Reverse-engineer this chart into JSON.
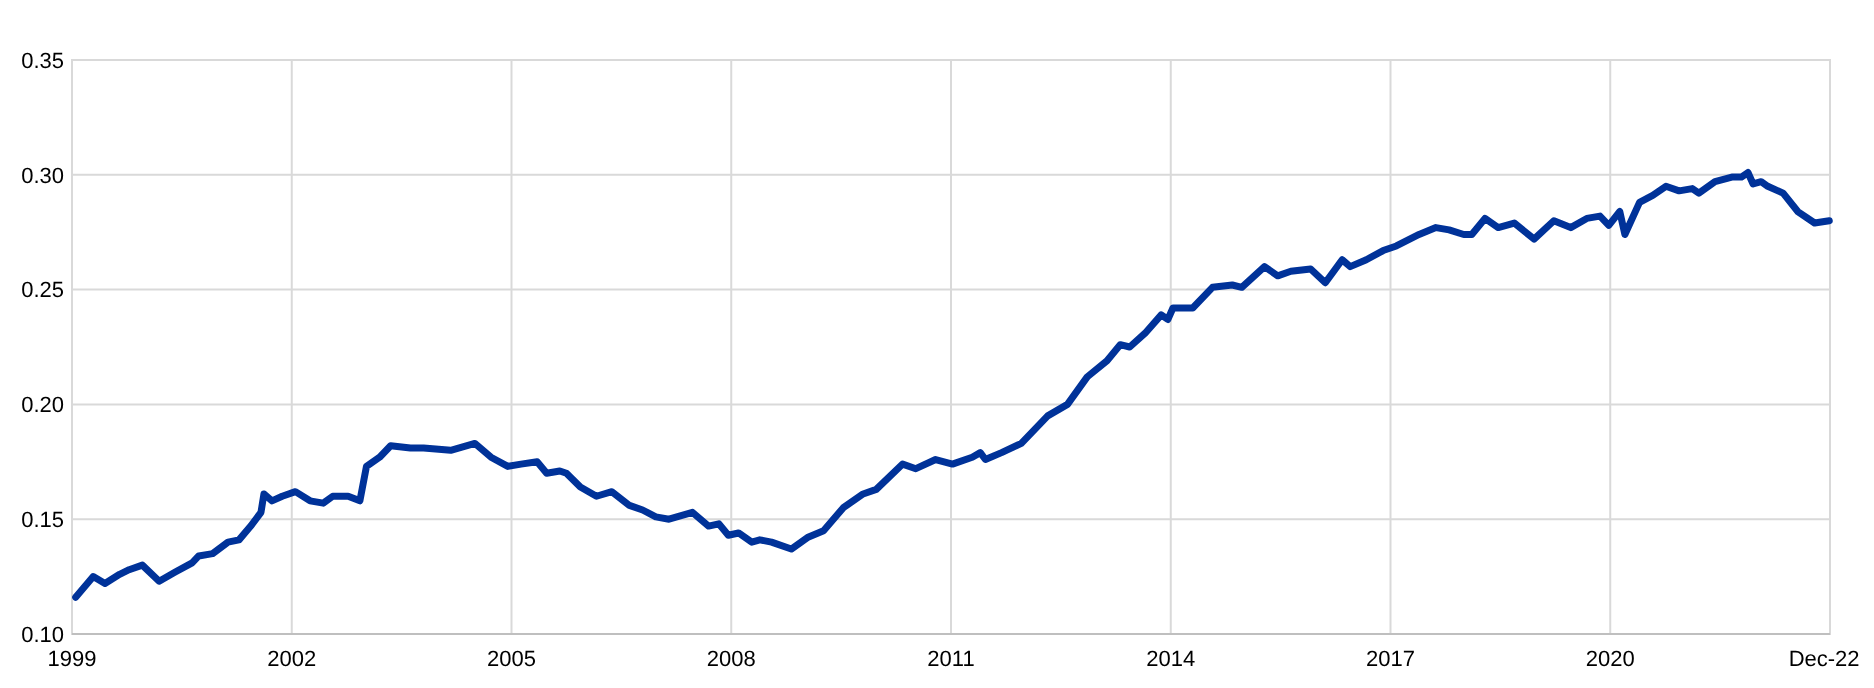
{
  "chart_data": {
    "type": "line",
    "x": [
      1999.05,
      1999.29,
      1999.45,
      1999.65,
      1999.78,
      1999.96,
      2000.19,
      2000.41,
      2000.64,
      2000.73,
      2000.92,
      2001.13,
      2001.28,
      2001.44,
      2001.58,
      2001.62,
      2001.73,
      2001.87,
      2002.05,
      2002.25,
      2002.43,
      2002.56,
      2002.77,
      2002.93,
      2003.02,
      2003.2,
      2003.35,
      2003.62,
      2003.8,
      2004.17,
      2004.5,
      2004.72,
      2004.95,
      2005.13,
      2005.35,
      2005.48,
      2005.66,
      2005.75,
      2005.94,
      2006.16,
      2006.37,
      2006.61,
      2006.79,
      2006.97,
      2007.15,
      2007.47,
      2007.69,
      2007.83,
      2007.96,
      2008.1,
      2008.28,
      2008.39,
      2008.55,
      2008.82,
      2009.04,
      2009.26,
      2009.53,
      2009.8,
      2009.98,
      2010.34,
      2010.52,
      2010.79,
      2011.02,
      2011.29,
      2011.4,
      2011.47,
      2011.69,
      2011.96,
      2012.32,
      2012.59,
      2012.86,
      2013.13,
      2013.31,
      2013.44,
      2013.65,
      2013.87,
      2013.96,
      2014.03,
      2014.3,
      2014.57,
      2014.84,
      2014.97,
      2015.28,
      2015.46,
      2015.64,
      2015.91,
      2016.11,
      2016.34,
      2016.45,
      2016.67,
      2016.9,
      2017.08,
      2017.39,
      2017.62,
      2017.8,
      2018.0,
      2018.11,
      2018.29,
      2018.47,
      2018.69,
      2018.96,
      2019.23,
      2019.46,
      2019.68,
      2019.86,
      2019.98,
      2020.13,
      2020.2,
      2020.4,
      2020.58,
      2020.76,
      2020.94,
      2021.12,
      2021.21,
      2021.43,
      2021.66,
      2021.79,
      2021.88,
      2021.95,
      2022.06,
      2022.15,
      2022.36,
      2022.56,
      2022.79,
      2022.99
    ],
    "values": [
      0.116,
      0.125,
      0.122,
      0.126,
      0.128,
      0.13,
      0.123,
      0.127,
      0.131,
      0.134,
      0.135,
      0.14,
      0.141,
      0.147,
      0.153,
      0.161,
      0.158,
      0.16,
      0.162,
      0.158,
      0.157,
      0.16,
      0.16,
      0.158,
      0.173,
      0.177,
      0.182,
      0.181,
      0.181,
      0.18,
      0.183,
      0.177,
      0.173,
      0.174,
      0.175,
      0.17,
      0.171,
      0.17,
      0.164,
      0.16,
      0.162,
      0.156,
      0.154,
      0.151,
      0.15,
      0.153,
      0.147,
      0.148,
      0.143,
      0.144,
      0.14,
      0.141,
      0.14,
      0.137,
      0.142,
      0.145,
      0.155,
      0.161,
      0.163,
      0.174,
      0.172,
      0.176,
      0.174,
      0.177,
      0.179,
      0.176,
      0.179,
      0.183,
      0.195,
      0.2,
      0.212,
      0.219,
      0.226,
      0.225,
      0.231,
      0.239,
      0.237,
      0.242,
      0.242,
      0.251,
      0.252,
      0.251,
      0.26,
      0.256,
      0.258,
      0.259,
      0.253,
      0.263,
      0.26,
      0.263,
      0.267,
      0.269,
      0.274,
      0.277,
      0.276,
      0.274,
      0.274,
      0.281,
      0.277,
      0.279,
      0.272,
      0.28,
      0.277,
      0.281,
      0.282,
      0.278,
      0.284,
      0.274,
      0.288,
      0.291,
      0.295,
      0.293,
      0.294,
      0.292,
      0.297,
      0.299,
      0.299,
      0.301,
      0.296,
      0.297,
      0.295,
      0.292,
      0.284,
      0.279,
      0.28
    ],
    "color": "#003299",
    "xlim": [
      1999,
      2023
    ],
    "xticks": [
      1999,
      2002,
      2005,
      2008,
      2011,
      2014,
      2017,
      2020,
      {
        "value": 2022.92,
        "label": "Dec-22"
      }
    ],
    "ylim": [
      0.1,
      0.35
    ],
    "yticks": [
      {
        "value": 0.1,
        "label": "0.10"
      },
      {
        "value": 0.15,
        "label": "0.15"
      },
      {
        "value": 0.2,
        "label": "0.20"
      },
      {
        "value": 0.25,
        "label": "0.25"
      },
      {
        "value": 0.3,
        "label": "0.30"
      },
      {
        "value": 0.35,
        "label": "0.35"
      }
    ],
    "grid": true
  }
}
